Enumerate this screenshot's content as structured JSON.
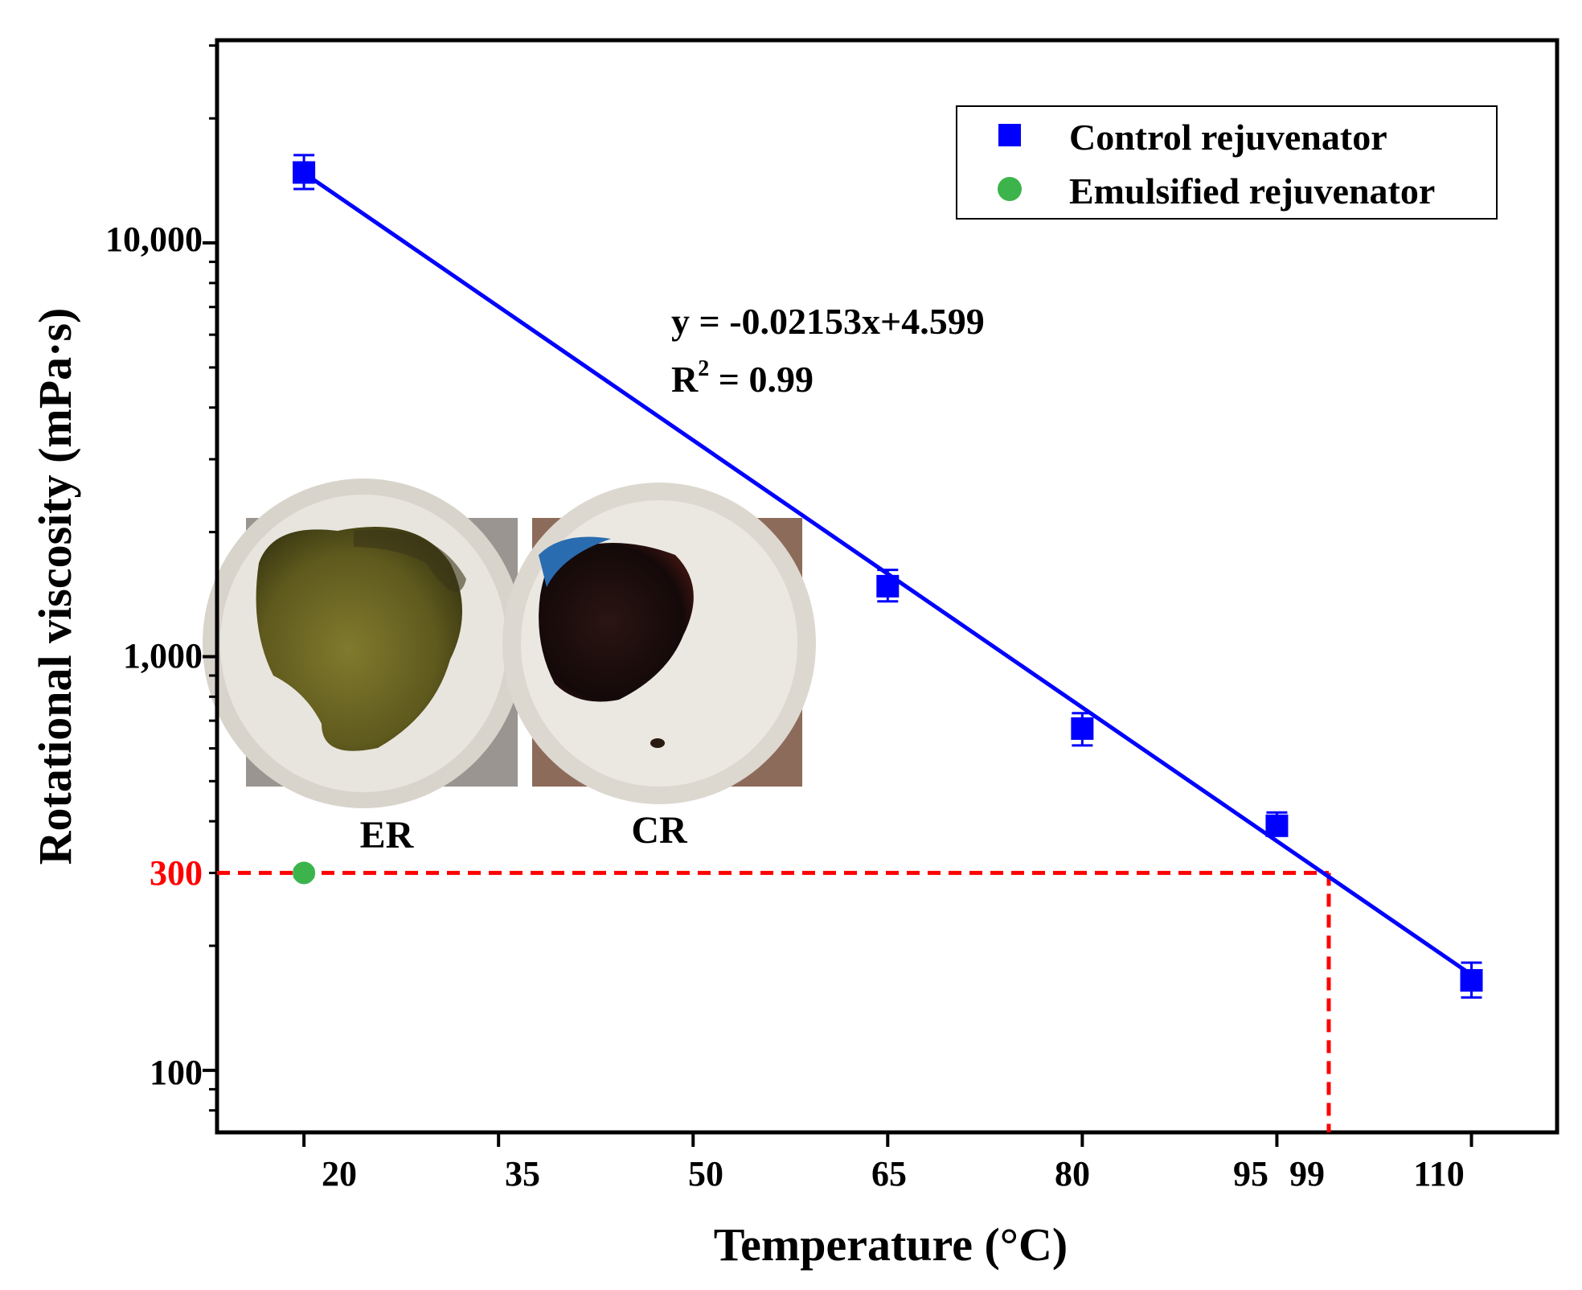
{
  "chart_data": {
    "type": "scatter",
    "title": "",
    "xlabel": "Temperature (°C)",
    "ylabel": "Rotational viscosity (mPa·s)",
    "xlim": [
      13.3,
      116.6
    ],
    "ylim_log10": [
      1.85,
      4.49
    ],
    "yscale": "log",
    "x_ticks": [
      20,
      35,
      50,
      65,
      80,
      95,
      99,
      110
    ],
    "x_tick_labels": [
      "20",
      "35",
      "50",
      "65",
      "80",
      "95",
      "99",
      "110"
    ],
    "y_ticks": [
      100,
      1000,
      10000
    ],
    "y_tick_labels": [
      "100",
      "1,000",
      "10,000"
    ],
    "grid": false,
    "legend_position": "top-right",
    "series": [
      {
        "name": "Control rejuvenator",
        "marker": "square",
        "color": "#0000ff",
        "x": [
          20,
          65,
          80,
          95,
          110
        ],
        "y": [
          14800,
          1480,
          670,
          390,
          165
        ],
        "y_err_low": [
          13500,
          1360,
          610,
          370,
          150
        ],
        "y_err_high": [
          16300,
          1620,
          730,
          420,
          182
        ]
      },
      {
        "name": "Emulsified rejuvenator",
        "marker": "circle",
        "color": "#3cb44b",
        "x": [
          20
        ],
        "y": [
          300
        ],
        "y_err_low": [
          293
        ],
        "y_err_high": [
          307
        ]
      }
    ],
    "fit_line": {
      "color": "#0000ff",
      "x": [
        20,
        110
      ],
      "y_log10": [
        4.169,
        2.231
      ],
      "equation": "y = -0.02153x+4.599",
      "r2_prefix": "R",
      "r2_sup": "2",
      "r2_suffix": " = 0.99"
    },
    "reference": {
      "color": "#ff0000",
      "y_value": 300,
      "y_label": "300",
      "x_value": 99
    }
  },
  "photos": {
    "er_label": "ER",
    "cr_label": "CR"
  }
}
